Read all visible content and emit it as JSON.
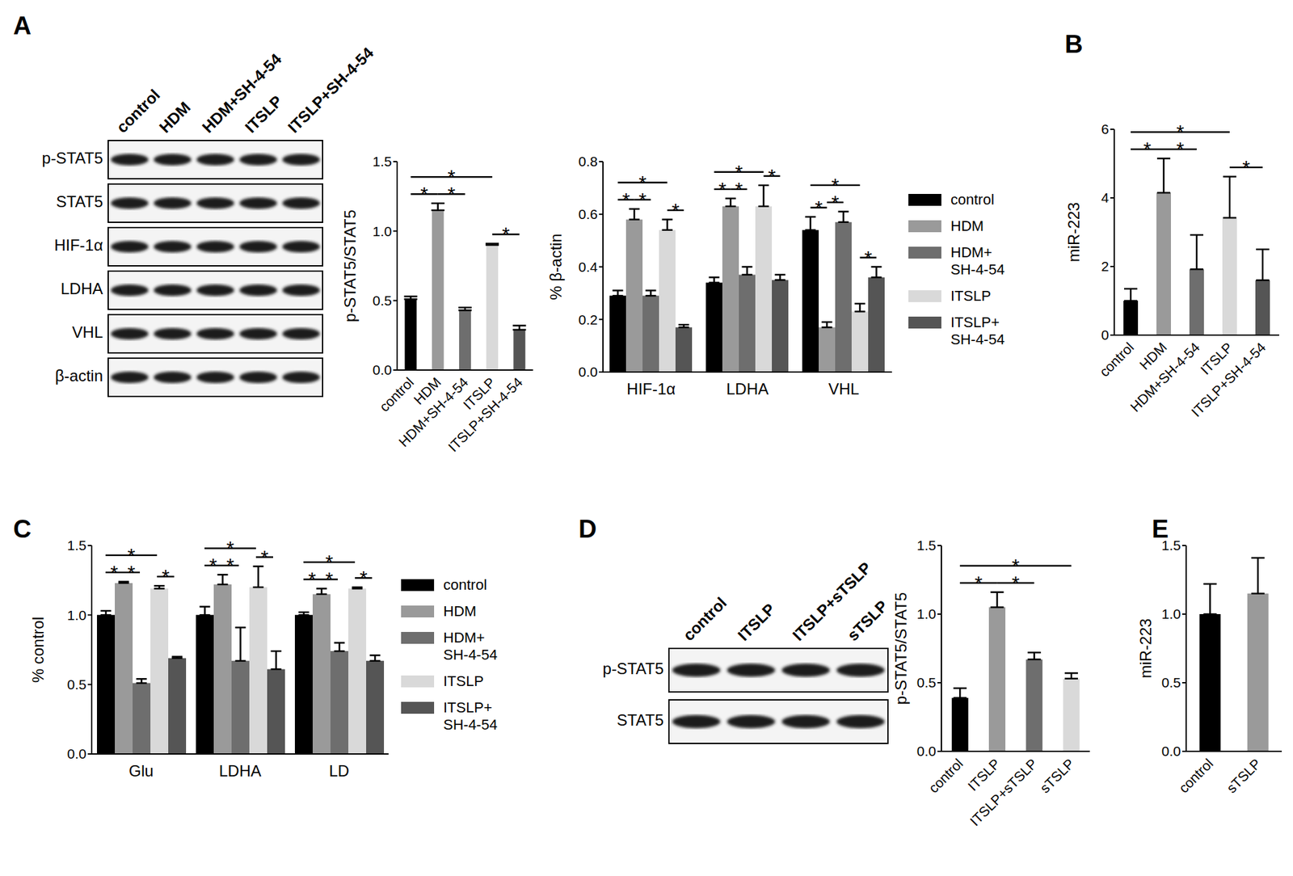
{
  "panel_labels": [
    "A",
    "B",
    "C",
    "D",
    "E"
  ],
  "blots": [
    {
      "lanes": [
        "control",
        "HDM",
        "HDM+SH-4-54",
        "ITSLP",
        "ITSLP+SH-4-54"
      ],
      "rows": [
        "p-STAT5",
        "STAT5",
        "HIF-1α",
        "LDHA",
        "VHL",
        "β-actin"
      ]
    },
    {
      "lanes": [
        "control",
        "ITSLP",
        "ITSLP+sTSLP",
        "sTSLP"
      ],
      "rows": [
        "p-STAT5",
        "STAT5"
      ]
    }
  ],
  "chart_data": [
    {
      "type": "bar",
      "y_label": "p-STAT5/STAT5",
      "categories": [
        "control",
        "HDM",
        "HDM+SH-4-54",
        "ITSLP",
        "ITSLP+SH-4-54"
      ],
      "values": [
        0.51,
        1.15,
        0.43,
        0.9,
        0.29
      ],
      "errors": [
        0.02,
        0.05,
        0.02,
        0.01,
        0.03
      ],
      "colors": [
        "#000000",
        "#9a9a9a",
        "#6e6e6e",
        "#d9d9d9",
        "#555555"
      ],
      "ylim": [
        0,
        1.5
      ],
      "yticks": [
        {
          "value": 0,
          "label": "0.0"
        },
        0.5,
        {
          "value": 1,
          "label": "1.0"
        },
        1.5
      ],
      "significance": [
        {
          "between": [
            "control",
            "HDM"
          ],
          "label": "*"
        },
        {
          "between": [
            "HDM",
            "HDM+SH-4-54"
          ],
          "label": "*"
        },
        {
          "between": [
            "control",
            "ITSLP"
          ],
          "label": "*"
        },
        {
          "between": [
            "ITSLP",
            "ITSLP+SH-4-54"
          ],
          "label": "*"
        }
      ]
    },
    {
      "type": "bar",
      "y_label": "% β-actin",
      "legend": "right",
      "categories": [
        "HIF-1α",
        "LDHA",
        "VHL"
      ],
      "series": [
        {
          "name": "control",
          "color": "#000000",
          "values": [
            0.29,
            0.34,
            0.54
          ],
          "errors": [
            0.02,
            0.02,
            0.05
          ]
        },
        {
          "name": "HDM",
          "color": "#9a9a9a",
          "values": [
            0.58,
            0.63,
            0.17
          ],
          "errors": [
            0.04,
            0.03,
            0.02
          ]
        },
        {
          "name": "HDM+SH-4-54",
          "color": "#6e6e6e",
          "values": [
            0.29,
            0.37,
            0.57
          ],
          "errors": [
            0.02,
            0.03,
            0.04
          ]
        },
        {
          "name": "ITSLP",
          "color": "#d9d9d9",
          "values": [
            0.54,
            0.63,
            0.23
          ],
          "errors": [
            0.04,
            0.08,
            0.03
          ]
        },
        {
          "name": "ITSLP+SH-4-54",
          "color": "#555555",
          "values": [
            0.17,
            0.35,
            0.36
          ],
          "errors": [
            0.01,
            0.02,
            0.04
          ]
        }
      ],
      "ylim": [
        0,
        0.8
      ],
      "yticks": [
        {
          "value": 0,
          "label": "0.0"
        },
        0.2,
        0.4,
        0.6,
        0.8
      ],
      "significance": [
        {
          "group": "HIF-1α",
          "between": [
            "control",
            "HDM"
          ],
          "label": "*"
        },
        {
          "group": "HIF-1α",
          "between": [
            "HDM",
            "HDM+SH-4-54"
          ],
          "label": "*"
        },
        {
          "group": "HIF-1α",
          "between": [
            "control",
            "ITSLP"
          ],
          "label": "*"
        },
        {
          "group": "HIF-1α",
          "between": [
            "ITSLP",
            "ITSLP+SH-4-54"
          ],
          "label": "*"
        },
        {
          "group": "LDHA",
          "between": [
            "control",
            "HDM"
          ],
          "label": "*"
        },
        {
          "group": "LDHA",
          "between": [
            "HDM",
            "HDM+SH-4-54"
          ],
          "label": "*"
        },
        {
          "group": "LDHA",
          "between": [
            "control",
            "ITSLP"
          ],
          "label": "*"
        },
        {
          "group": "LDHA",
          "between": [
            "ITSLP",
            "ITSLP+SH-4-54"
          ],
          "label": "*"
        },
        {
          "group": "VHL",
          "between": [
            "control",
            "HDM"
          ],
          "label": "*"
        },
        {
          "group": "VHL",
          "between": [
            "HDM",
            "HDM+SH-4-54"
          ],
          "label": "*"
        },
        {
          "group": "VHL",
          "between": [
            "control",
            "ITSLP"
          ],
          "label": "*"
        },
        {
          "group": "VHL",
          "between": [
            "ITSLP",
            "ITSLP+SH-4-54"
          ],
          "label": "*"
        }
      ]
    },
    {
      "type": "bar",
      "y_label": "miR-223",
      "categories": [
        "control",
        "HDM",
        "HDM+SH-4-54",
        "ITSLP",
        "ITSLP+SH-4-54"
      ],
      "values": [
        1.0,
        4.15,
        1.92,
        3.42,
        1.6
      ],
      "errors": [
        0.35,
        1.0,
        1.0,
        1.2,
        0.9
      ],
      "colors": [
        "#000000",
        "#9a9a9a",
        "#6e6e6e",
        "#d9d9d9",
        "#555555"
      ],
      "ylim": [
        0,
        6
      ],
      "yticks": [
        0,
        2,
        4,
        6
      ],
      "significance": [
        {
          "between": [
            "control",
            "HDM"
          ],
          "label": "*"
        },
        {
          "between": [
            "HDM",
            "HDM+SH-4-54"
          ],
          "label": "*"
        },
        {
          "between": [
            "control",
            "ITSLP"
          ],
          "label": "*"
        },
        {
          "between": [
            "ITSLP",
            "ITSLP+SH-4-54"
          ],
          "label": "*"
        }
      ]
    },
    {
      "type": "bar",
      "y_label": "% control",
      "legend": "right",
      "categories": [
        "Glu",
        "LDHA",
        "LD"
      ],
      "series": [
        {
          "name": "control",
          "color": "#000000",
          "values": [
            1.0,
            1.0,
            1.0
          ],
          "errors": [
            0.03,
            0.06,
            0.02
          ]
        },
        {
          "name": "HDM",
          "color": "#9a9a9a",
          "values": [
            1.23,
            1.22,
            1.15
          ],
          "errors": [
            0.01,
            0.07,
            0.04
          ]
        },
        {
          "name": "HDM+SH-4-54",
          "color": "#6e6e6e",
          "values": [
            0.51,
            0.67,
            0.74
          ],
          "errors": [
            0.03,
            0.24,
            0.06
          ]
        },
        {
          "name": "ITSLP",
          "color": "#d9d9d9",
          "values": [
            1.19,
            1.2,
            1.19
          ],
          "errors": [
            0.02,
            0.15,
            0.01
          ]
        },
        {
          "name": "ITSLP+SH-4-54",
          "color": "#555555",
          "values": [
            0.69,
            0.61,
            0.67
          ],
          "errors": [
            0.01,
            0.13,
            0.04
          ]
        }
      ],
      "ylim": [
        0,
        1.5
      ],
      "yticks": [
        {
          "value": 0,
          "label": "0.0"
        },
        0.5,
        {
          "value": 1,
          "label": "1.0"
        },
        1.5
      ],
      "significance": [
        {
          "group": "Glu",
          "between": [
            "control",
            "HDM"
          ],
          "label": "*"
        },
        {
          "group": "Glu",
          "between": [
            "HDM",
            "HDM+SH-4-54"
          ],
          "label": "*"
        },
        {
          "group": "Glu",
          "between": [
            "control",
            "ITSLP"
          ],
          "label": "*"
        },
        {
          "group": "Glu",
          "between": [
            "ITSLP",
            "ITSLP+SH-4-54"
          ],
          "label": "*"
        },
        {
          "group": "LDHA",
          "between": [
            "control",
            "HDM"
          ],
          "label": "*"
        },
        {
          "group": "LDHA",
          "between": [
            "HDM",
            "HDM+SH-4-54"
          ],
          "label": "*"
        },
        {
          "group": "LDHA",
          "between": [
            "control",
            "ITSLP"
          ],
          "label": "*"
        },
        {
          "group": "LDHA",
          "between": [
            "ITSLP",
            "ITSLP+SH-4-54"
          ],
          "label": "*"
        },
        {
          "group": "LD",
          "between": [
            "control",
            "HDM"
          ],
          "label": "*"
        },
        {
          "group": "LD",
          "between": [
            "HDM",
            "HDM+SH-4-54"
          ],
          "label": "*"
        },
        {
          "group": "LD",
          "between": [
            "control",
            "ITSLP"
          ],
          "label": "*"
        },
        {
          "group": "LD",
          "between": [
            "ITSLP",
            "ITSLP+SH-4-54"
          ],
          "label": "*"
        }
      ]
    },
    {
      "type": "bar",
      "y_label": "p-STAT5/STAT5",
      "categories": [
        "control",
        "ITSLP",
        "ITSLP+sTSLP",
        "sTSLP"
      ],
      "values": [
        0.39,
        1.05,
        0.67,
        0.53
      ],
      "errors": [
        0.07,
        0.11,
        0.05,
        0.04
      ],
      "colors": [
        "#000000",
        "#9a9a9a",
        "#6e6e6e",
        "#d9d9d9"
      ],
      "ylim": [
        0,
        1.5
      ],
      "yticks": [
        {
          "value": 0,
          "label": "0.0"
        },
        0.5,
        {
          "value": 1,
          "label": "1.0"
        },
        1.5
      ],
      "significance": [
        {
          "between": [
            "control",
            "ITSLP"
          ],
          "label": "*"
        },
        {
          "between": [
            "ITSLP",
            "ITSLP+sTSLP"
          ],
          "label": "*"
        },
        {
          "between": [
            "control",
            "sTSLP"
          ],
          "label": "*"
        }
      ]
    },
    {
      "type": "bar",
      "y_label": "miR-223",
      "categories": [
        "control",
        "sTSLP"
      ],
      "values": [
        1.0,
        1.15
      ],
      "errors": [
        0.22,
        0.26
      ],
      "colors": [
        "#000000",
        "#9a9a9a"
      ],
      "ylim": [
        0,
        1.5
      ],
      "yticks": [
        {
          "value": 0,
          "label": "0.0"
        },
        0.5,
        {
          "value": 1,
          "label": "1.0"
        },
        1.5
      ]
    }
  ]
}
